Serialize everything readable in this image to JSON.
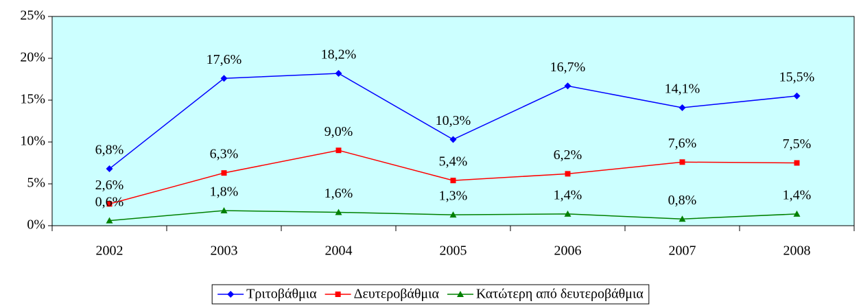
{
  "chart_data": {
    "type": "line",
    "categories": [
      "2002",
      "2003",
      "2004",
      "2005",
      "2006",
      "2007",
      "2008"
    ],
    "series": [
      {
        "name": "Τριτοβάθμια",
        "color": "#0000ff",
        "marker": "diamond",
        "values": [
          6.8,
          17.6,
          18.2,
          10.3,
          16.7,
          14.1,
          15.5
        ],
        "value_labels": [
          "6,8%",
          "17,6%",
          "18,2%",
          "10,3%",
          "16,7%",
          "14,1%",
          "15,5%"
        ]
      },
      {
        "name": "Δευτεροβάθμια",
        "color": "#ff0000",
        "marker": "square",
        "values": [
          2.6,
          6.3,
          9.0,
          5.4,
          6.2,
          7.6,
          7.5
        ],
        "value_labels": [
          "2,6%",
          "6,3%",
          "9,0%",
          "5,4%",
          "6,2%",
          "7,6%",
          "7,5%"
        ]
      },
      {
        "name": "Κατώτερη από δευτεροβάθμια",
        "color": "#008000",
        "marker": "triangle",
        "values": [
          0.6,
          1.8,
          1.6,
          1.3,
          1.4,
          0.8,
          1.4
        ],
        "value_labels": [
          "0,6%",
          "1,8%",
          "1,6%",
          "1,3%",
          "1,4%",
          "0,8%",
          "1,4%"
        ]
      }
    ],
    "ylim": [
      0,
      25
    ],
    "yticks": [
      {
        "value": 0,
        "label": "0%"
      },
      {
        "value": 5,
        "label": "5%"
      },
      {
        "value": 10,
        "label": "10%"
      },
      {
        "value": 15,
        "label": "15%"
      },
      {
        "value": 20,
        "label": "20%"
      },
      {
        "value": 25,
        "label": "25%"
      }
    ],
    "plot_background": "#ccffff",
    "legend": "bottom"
  }
}
